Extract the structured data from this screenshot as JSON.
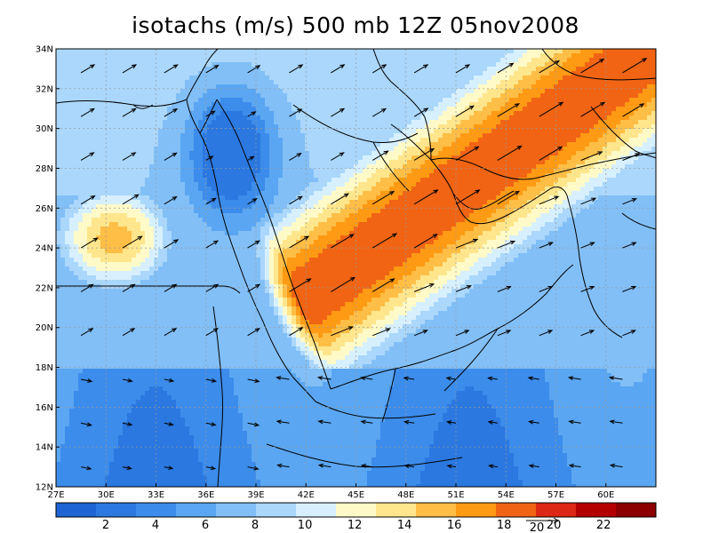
{
  "title": "isotachs (m/s) 500 mb 12Z 05nov2008",
  "map": {
    "lat_labels": [
      "34N",
      "32N",
      "30N",
      "28N",
      "26N",
      "24N",
      "22N",
      "20N",
      "18N",
      "16N",
      "14N",
      "12N"
    ],
    "lon_labels": [
      "27E",
      "30E",
      "33E",
      "36E",
      "39E",
      "42E",
      "45E",
      "48E",
      "51E",
      "54E",
      "57E",
      "60E"
    ],
    "lon_range": [
      27,
      63
    ],
    "lat_range": [
      12,
      34
    ],
    "grid": "dashed"
  },
  "colorbar": {
    "labels": [
      "2",
      "4",
      "6",
      "8",
      "10",
      "12",
      "14",
      "16",
      "18",
      "20",
      "22"
    ],
    "reference_vector_label": "20",
    "colors": [
      "#1e64d2",
      "#2a78e0",
      "#3c8ceb",
      "#5aa6f2",
      "#82bff7",
      "#aad7fb",
      "#d7f0ff",
      "#fffac8",
      "#ffe68c",
      "#ffbe46",
      "#ff9a14",
      "#f06414",
      "#dc2814",
      "#b40000",
      "#8c0000"
    ]
  },
  "field": {
    "jet_max_mps": 24,
    "anticyclonic_max_west_mps": 19,
    "minimum_mps": 2
  }
}
